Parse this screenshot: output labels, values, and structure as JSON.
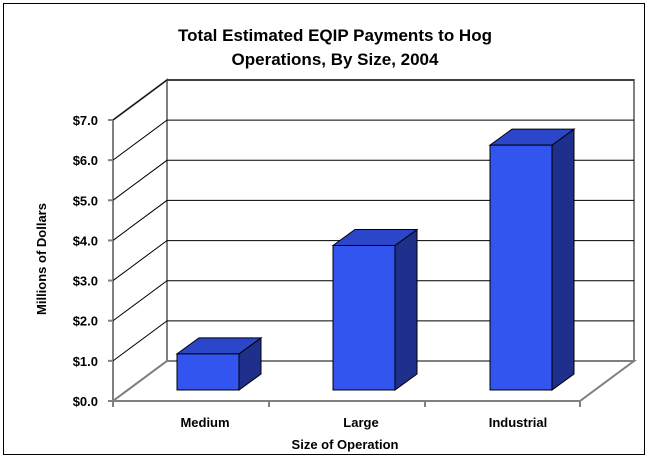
{
  "chart_data": {
    "type": "bar",
    "title_lines": [
      "Total Estimated EQIP Payments to Hog",
      "Operations, By Size, 2004"
    ],
    "xlabel": "Size of Operation",
    "ylabel": "Millions of Dollars",
    "categories": [
      "Medium",
      "Large",
      "Industrial"
    ],
    "values": [
      0.9,
      3.6,
      6.1
    ],
    "ylim": [
      0,
      7
    ],
    "yticks": [
      0,
      1,
      2,
      3,
      4,
      5,
      6,
      7
    ],
    "ytick_labels": [
      "$0.0",
      "$1.0",
      "$2.0",
      "$3.0",
      "$4.0",
      "$5.0",
      "$6.0",
      "$7.0"
    ],
    "grid": true,
    "legend": "none",
    "colors": {
      "bar_front": "#3155ee",
      "bar_side": "#1f2f8c",
      "bar_top": "#2b46c8",
      "wall": "#ffffff",
      "wall_border": "#808080",
      "grid": "#000000"
    }
  }
}
